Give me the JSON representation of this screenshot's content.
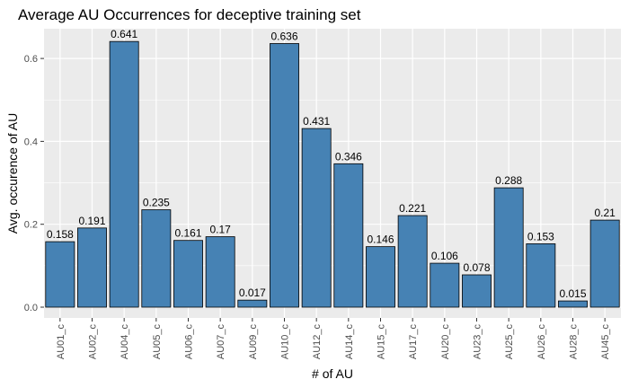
{
  "chart_data": {
    "type": "bar",
    "title": "Average AU Occurrences for deceptive training set",
    "xlabel": "# of AU",
    "ylabel": "Avg. occurence of AU",
    "categories": [
      "AU01_c",
      "AU02_c",
      "AU04_c",
      "AU05_c",
      "AU06_c",
      "AU07_c",
      "AU09_c",
      "AU10_c",
      "AU12_c",
      "AU14_c",
      "AU15_c",
      "AU17_c",
      "AU20_c",
      "AU23_c",
      "AU25_c",
      "AU26_c",
      "AU28_c",
      "AU45_c"
    ],
    "values": [
      0.158,
      0.191,
      0.641,
      0.235,
      0.161,
      0.17,
      0.017,
      0.636,
      0.431,
      0.346,
      0.146,
      0.221,
      0.106,
      0.078,
      0.288,
      0.153,
      0.015,
      0.21
    ],
    "data_labels": [
      "0.158",
      "0.191",
      "0.641",
      "0.235",
      "0.161",
      "0.17",
      "0.017",
      "0.636",
      "0.431",
      "0.346",
      "0.146",
      "0.221",
      "0.106",
      "0.078",
      "0.288",
      "0.153",
      "0.015",
      "0.21"
    ],
    "yticks": [
      "0.0",
      "0.2",
      "0.4",
      "0.6"
    ],
    "ylim": [
      0,
      0.675
    ],
    "grid": true,
    "legend": "none",
    "colors": {
      "bar_fill": "#4682b4",
      "bar_stroke": "#000000",
      "panel": "#ebebeb",
      "grid": "#ffffff"
    }
  }
}
